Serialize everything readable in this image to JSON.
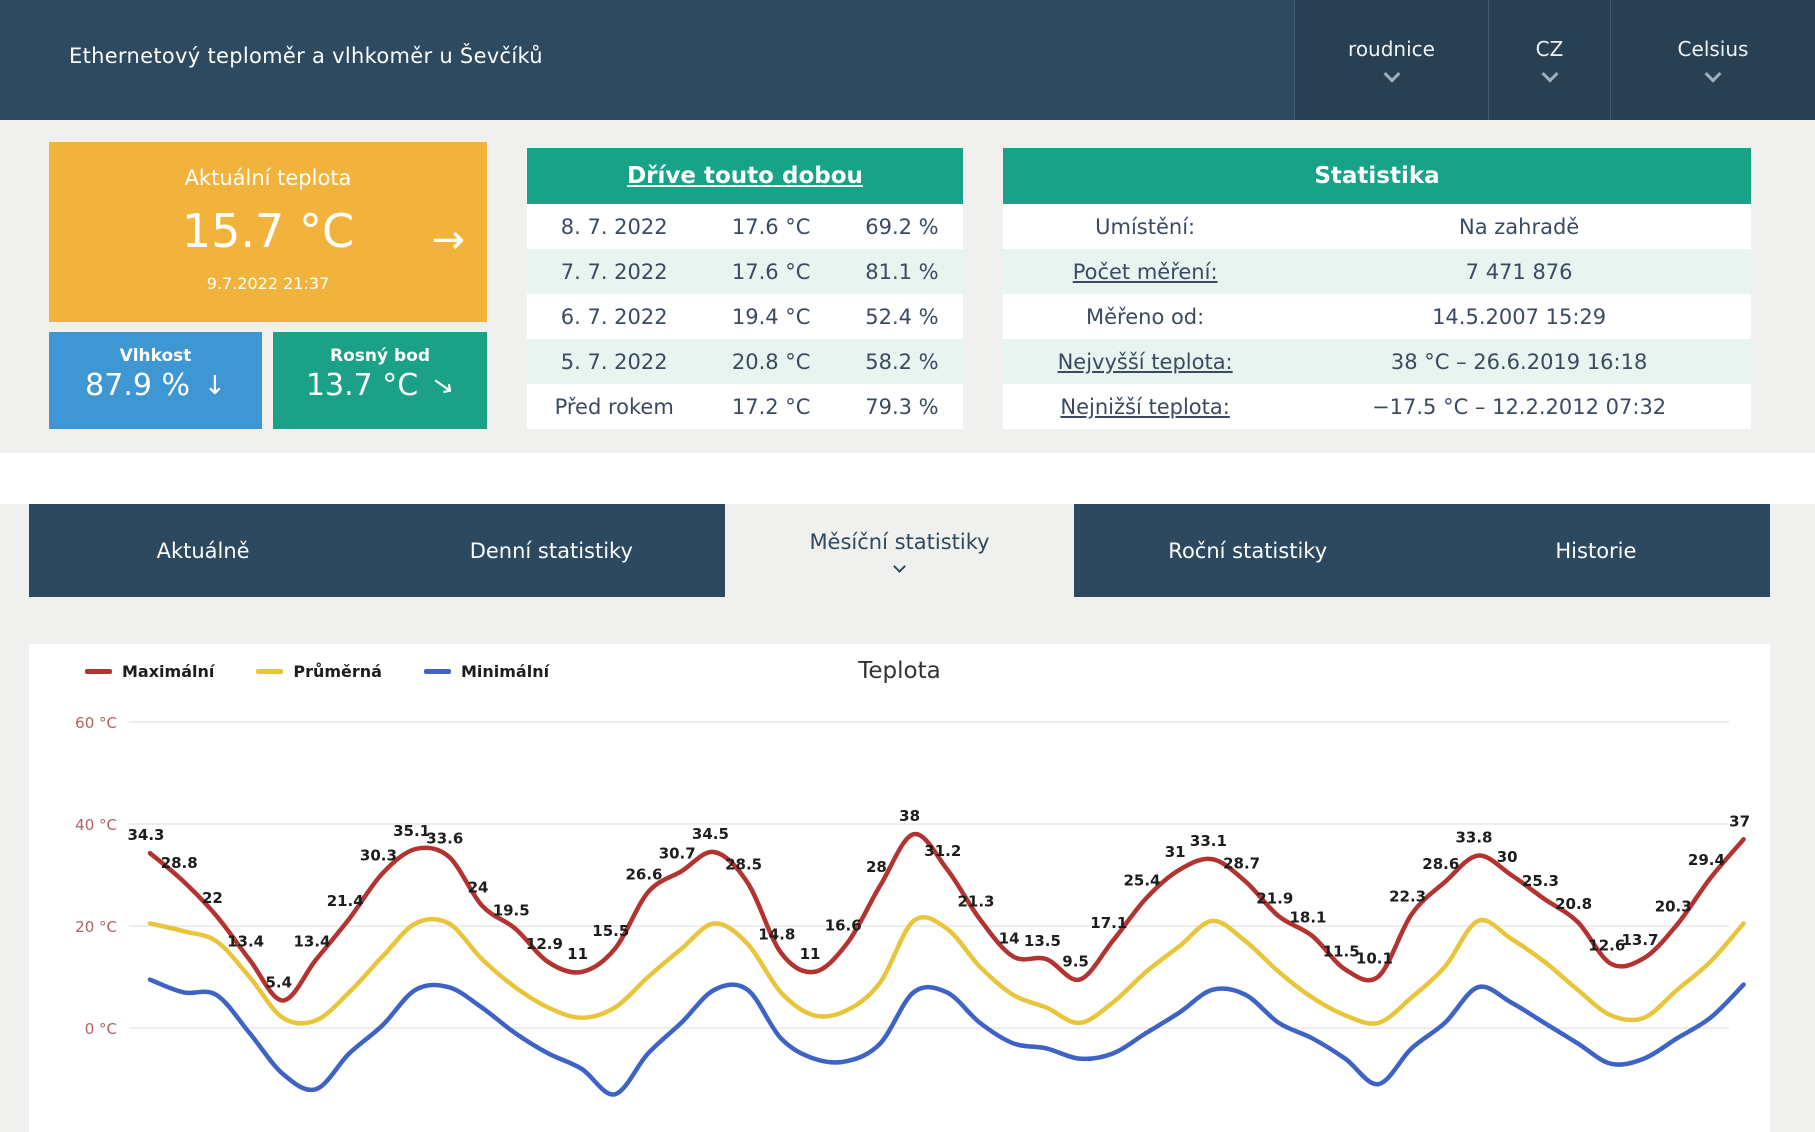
{
  "header": {
    "title": "Ethernetový teploměr a vlhkoměr u Ševčíků",
    "dropdowns": [
      {
        "label": "roudnice",
        "icon": "chevron-down-icon"
      },
      {
        "label": "CZ",
        "icon": "chevron-down-icon"
      },
      {
        "label": "Celsius",
        "icon": "chevron-down-icon"
      }
    ]
  },
  "cards": {
    "temperature": {
      "title": "Aktuální teplota",
      "value": "15.7 °C",
      "timestamp": "9.7.2022 21:37",
      "trend_icon": "arrow-right-icon",
      "arrow_glyph": "→",
      "color": "#f2b33d"
    },
    "humidity": {
      "title": "Vlhkost",
      "value": "87.9 %",
      "trend_icon": "arrow-down-icon",
      "arrow_glyph": "↓",
      "color": "#3e96d2"
    },
    "dew_point": {
      "title": "Rosný bod",
      "value": "13.7 °C",
      "trend_icon": "arrow-down-right-icon",
      "arrow_glyph": "→",
      "color": "#1aa187"
    }
  },
  "earlier_table": {
    "title": "Dříve touto dobou",
    "header_color": "#18a389",
    "rows": [
      [
        "8. 7. 2022",
        "17.6 °C",
        "69.2 %"
      ],
      [
        "7. 7. 2022",
        "17.6 °C",
        "81.1 %"
      ],
      [
        "6. 7. 2022",
        "19.4 °C",
        "52.4 %"
      ],
      [
        "5. 7. 2022",
        "20.8 °C",
        "58.2 %"
      ],
      [
        "Před rokem",
        "17.2 °C",
        "79.3 %"
      ]
    ]
  },
  "stats_table": {
    "title": "Statistika",
    "header_color": "#18a389",
    "rows": [
      {
        "label": "Umístění:",
        "value": "Na zahradě"
      },
      {
        "label": "Počet měření:",
        "value": "7 471 876"
      },
      {
        "label": "Měřeno od:",
        "value": "14.5.2007 15:29"
      },
      {
        "label": "Nejvyšší teplota:",
        "value": "38 °C – 26.6.2019 16:18"
      },
      {
        "label": "Nejnižší teplota:",
        "value": "−17.5 °C – 12.2.2012 07:32"
      }
    ]
  },
  "tabs": [
    {
      "label": "Aktuálně",
      "active": false
    },
    {
      "label": "Denní statistiky",
      "active": false
    },
    {
      "label": "Měsíční statistiky",
      "active": true
    },
    {
      "label": "Roční statistiky",
      "active": false
    },
    {
      "label": "Historie",
      "active": false
    }
  ],
  "chart_data": {
    "type": "line",
    "title": "Teplota",
    "grid": true,
    "legend_position": "top-left",
    "x_points": 49,
    "ylabel_ticks": [
      "60 °C",
      "40 °C",
      "20 °C",
      "0 °C"
    ],
    "ytick_values": [
      60,
      40,
      20,
      0
    ],
    "ylim_visible": [
      -20,
      65
    ],
    "axis_label_color": "#b2605f",
    "series": [
      {
        "name": "Maximální",
        "color": "#b23330",
        "labels_shown": true,
        "values": [
          34.3,
          28.8,
          22,
          13.4,
          5.4,
          13.4,
          21.4,
          30.3,
          35.1,
          33.6,
          24,
          19.5,
          12.9,
          11,
          15.5,
          26.6,
          30.7,
          34.5,
          28.5,
          14.8,
          11,
          16.6,
          28,
          38,
          31.2,
          21.3,
          14,
          13.5,
          9.5,
          17.1,
          25.4,
          31,
          33.1,
          28.7,
          21.9,
          18.1,
          11.5,
          10.1,
          22.3,
          28.6,
          33.8,
          30,
          25.3,
          20.8,
          12.6,
          13.7,
          20.3,
          29.4,
          37
        ]
      },
      {
        "name": "Průměrná",
        "color": "#e9c53c",
        "labels_shown": false,
        "values": [
          20.5,
          19,
          17,
          10,
          2,
          1.5,
          7,
          14,
          20.5,
          20.5,
          13.5,
          8,
          4,
          2,
          4,
          10,
          15.5,
          20.5,
          16.5,
          7,
          2.5,
          3.5,
          9,
          21,
          19.5,
          12,
          6.5,
          4,
          1,
          5,
          11,
          16,
          21,
          17,
          11,
          6,
          2.5,
          1,
          6,
          12,
          21,
          17.5,
          13,
          7.5,
          2.5,
          2,
          7.5,
          13,
          20.5
        ]
      },
      {
        "name": "Minimální",
        "color": "#3e63c5",
        "labels_shown": false,
        "values": [
          9.5,
          7,
          6.5,
          -1,
          -9,
          -12,
          -5,
          0.5,
          7.5,
          8,
          4,
          -1,
          -5,
          -8,
          -13,
          -5,
          1,
          7.5,
          7.5,
          -2,
          -6,
          -6.5,
          -3,
          7,
          7,
          1,
          -3,
          -4,
          -6,
          -5,
          -1,
          3,
          7.5,
          6.5,
          1,
          -2,
          -6,
          -11,
          -4,
          1,
          8,
          5,
          1,
          -3,
          -7,
          -6,
          -2,
          2,
          8.5
        ]
      }
    ]
  }
}
